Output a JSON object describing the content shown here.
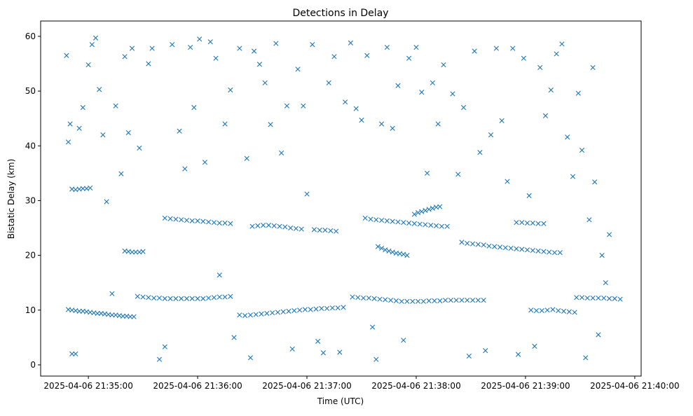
{
  "chart_data": {
    "type": "scatter",
    "title": "Detections in Delay",
    "xlabel": "Time (UTC)",
    "ylabel": "Bistatic Delay (km)",
    "x_units": "seconds after 2025-04-06 21:34:00",
    "xlim": [
      33.8,
      363.5
    ],
    "ylim": [
      -2.05,
      62.8
    ],
    "grid": false,
    "marker": "x",
    "color": "#1f77b4",
    "xticks": [
      {
        "value": 60,
        "label": "2025-04-06 21:35:00"
      },
      {
        "value": 120,
        "label": "2025-04-06 21:36:00"
      },
      {
        "value": 180,
        "label": "2025-04-06 21:37:00"
      },
      {
        "value": 240,
        "label": "2025-04-06 21:38:00"
      },
      {
        "value": 300,
        "label": "2025-04-06 21:39:00"
      },
      {
        "value": 360,
        "label": "2025-04-06 21:40:00"
      }
    ],
    "yticks": [
      {
        "value": 0,
        "label": "0"
      },
      {
        "value": 10,
        "label": "10"
      },
      {
        "value": 20,
        "label": "20"
      },
      {
        "value": 30,
        "label": "30"
      },
      {
        "value": 40,
        "label": "40"
      },
      {
        "value": 50,
        "label": "50"
      },
      {
        "value": 60,
        "label": "60"
      }
    ],
    "points": [
      [
        49,
        10.1
      ],
      [
        51,
        10
      ],
      [
        53,
        9.9
      ],
      [
        55,
        9.8
      ],
      [
        57,
        9.8
      ],
      [
        59,
        9.7
      ],
      [
        61,
        9.6
      ],
      [
        63,
        9.5
      ],
      [
        65,
        9.4
      ],
      [
        67,
        9.4
      ],
      [
        69,
        9.3
      ],
      [
        71,
        9.2
      ],
      [
        73,
        9.1
      ],
      [
        75,
        9.1
      ],
      [
        77,
        9.0
      ],
      [
        79,
        8.9
      ],
      [
        81,
        8.9
      ],
      [
        83,
        8.8
      ],
      [
        85,
        8.8
      ],
      [
        87,
        12.5
      ],
      [
        90,
        12.4
      ],
      [
        93,
        12.3
      ],
      [
        96,
        12.2
      ],
      [
        99,
        12.2
      ],
      [
        102,
        12.1
      ],
      [
        105,
        12.1
      ],
      [
        108,
        12.1
      ],
      [
        111,
        12.1
      ],
      [
        114,
        12.1
      ],
      [
        117,
        12.1
      ],
      [
        120,
        12.1
      ],
      [
        123,
        12.1
      ],
      [
        126,
        12.2
      ],
      [
        129,
        12.3
      ],
      [
        132,
        12.4
      ],
      [
        135,
        12.4
      ],
      [
        138,
        12.5
      ],
      [
        143,
        9.1
      ],
      [
        146,
        9.0
      ],
      [
        149,
        9.1
      ],
      [
        152,
        9.2
      ],
      [
        155,
        9.3
      ],
      [
        158,
        9.4
      ],
      [
        161,
        9.5
      ],
      [
        164,
        9.6
      ],
      [
        167,
        9.7
      ],
      [
        170,
        9.8
      ],
      [
        173,
        9.9
      ],
      [
        176,
        10.0
      ],
      [
        179,
        10.1
      ],
      [
        182,
        10.1
      ],
      [
        185,
        10.2
      ],
      [
        188,
        10.3
      ],
      [
        191,
        10.3
      ],
      [
        194,
        10.4
      ],
      [
        197,
        10.4
      ],
      [
        200,
        10.5
      ],
      [
        205,
        12.4
      ],
      [
        208,
        12.3
      ],
      [
        211,
        12.2
      ],
      [
        214,
        12.2
      ],
      [
        217,
        12.1
      ],
      [
        220,
        12.0
      ],
      [
        223,
        11.9
      ],
      [
        226,
        11.8
      ],
      [
        229,
        11.7
      ],
      [
        232,
        11.6
      ],
      [
        235,
        11.6
      ],
      [
        238,
        11.6
      ],
      [
        241,
        11.6
      ],
      [
        244,
        11.6
      ],
      [
        247,
        11.7
      ],
      [
        250,
        11.7
      ],
      [
        253,
        11.7
      ],
      [
        256,
        11.8
      ],
      [
        259,
        11.8
      ],
      [
        262,
        11.8
      ],
      [
        265,
        11.8
      ],
      [
        268,
        11.8
      ],
      [
        271,
        11.8
      ],
      [
        274,
        11.8
      ],
      [
        277,
        11.8
      ],
      [
        102,
        26.8
      ],
      [
        105,
        26.7
      ],
      [
        108,
        26.6
      ],
      [
        111,
        26.5
      ],
      [
        114,
        26.4
      ],
      [
        117,
        26.3
      ],
      [
        120,
        26.3
      ],
      [
        123,
        26.2
      ],
      [
        126,
        26.1
      ],
      [
        129,
        26.0
      ],
      [
        132,
        25.9
      ],
      [
        135,
        25.9
      ],
      [
        138,
        25.8
      ],
      [
        212,
        26.8
      ],
      [
        215,
        26.6
      ],
      [
        218,
        26.5
      ],
      [
        221,
        26.4
      ],
      [
        224,
        26.3
      ],
      [
        227,
        26.2
      ],
      [
        230,
        26.1
      ],
      [
        233,
        26.0
      ],
      [
        236,
        25.9
      ],
      [
        239,
        25.8
      ],
      [
        242,
        25.7
      ],
      [
        245,
        25.6
      ],
      [
        248,
        25.5
      ],
      [
        251,
        25.4
      ],
      [
        254,
        25.3
      ],
      [
        257,
        25.3
      ],
      [
        265,
        22.4
      ],
      [
        268,
        22.2
      ],
      [
        271,
        22.1
      ],
      [
        274,
        22.0
      ],
      [
        277,
        21.9
      ],
      [
        280,
        21.7
      ],
      [
        283,
        21.6
      ],
      [
        286,
        21.5
      ],
      [
        289,
        21.4
      ],
      [
        292,
        21.3
      ],
      [
        295,
        21.2
      ],
      [
        298,
        21.1
      ],
      [
        301,
        21.0
      ],
      [
        304,
        20.9
      ],
      [
        307,
        20.8
      ],
      [
        310,
        20.7
      ],
      [
        313,
        20.6
      ],
      [
        316,
        20.5
      ],
      [
        319,
        20.5
      ],
      [
        295,
        26.0
      ],
      [
        298,
        26.0
      ],
      [
        301,
        25.9
      ],
      [
        304,
        25.9
      ],
      [
        307,
        25.8
      ],
      [
        310,
        25.8
      ],
      [
        328,
        12.3
      ],
      [
        331,
        12.3
      ],
      [
        334,
        12.2
      ],
      [
        337,
        12.2
      ],
      [
        340,
        12.2
      ],
      [
        343,
        12.2
      ],
      [
        346,
        12.1
      ],
      [
        349,
        12.1
      ],
      [
        352,
        12.0
      ],
      [
        51,
        32.1
      ],
      [
        53,
        32.0
      ],
      [
        55,
        32.1
      ],
      [
        57,
        32.2
      ],
      [
        59,
        32.2
      ],
      [
        61,
        32.3
      ],
      [
        80,
        20.8
      ],
      [
        82,
        20.7
      ],
      [
        84,
        20.6
      ],
      [
        86,
        20.6
      ],
      [
        88,
        20.6
      ],
      [
        90,
        20.7
      ],
      [
        219,
        21.6
      ],
      [
        221,
        21.3
      ],
      [
        223,
        21.0
      ],
      [
        225,
        20.8
      ],
      [
        227,
        20.6
      ],
      [
        229,
        20.4
      ],
      [
        231,
        20.3
      ],
      [
        233,
        20.2
      ],
      [
        235,
        20.0
      ],
      [
        239,
        27.5
      ],
      [
        241,
        27.8
      ],
      [
        243,
        28.0
      ],
      [
        245,
        28.2
      ],
      [
        247,
        28.4
      ],
      [
        249,
        28.6
      ],
      [
        251,
        28.8
      ],
      [
        253,
        28.9
      ],
      [
        303,
        10.0
      ],
      [
        306,
        9.9
      ],
      [
        309,
        9.9
      ],
      [
        312,
        10.0
      ],
      [
        315,
        10.1
      ],
      [
        318,
        9.9
      ],
      [
        321,
        9.8
      ],
      [
        324,
        9.7
      ],
      [
        327,
        9.6
      ],
      [
        150,
        25.3
      ],
      [
        153,
        25.4
      ],
      [
        156,
        25.5
      ],
      [
        159,
        25.5
      ],
      [
        162,
        25.4
      ],
      [
        165,
        25.3
      ],
      [
        168,
        25.2
      ],
      [
        171,
        25.0
      ],
      [
        174,
        24.9
      ],
      [
        177,
        24.8
      ],
      [
        184,
        24.7
      ],
      [
        187,
        24.6
      ],
      [
        190,
        24.6
      ],
      [
        193,
        24.5
      ],
      [
        196,
        24.4
      ],
      [
        48,
        56.5
      ],
      [
        49,
        40.7
      ],
      [
        50,
        44.0
      ],
      [
        51,
        2.0
      ],
      [
        53,
        2.0
      ],
      [
        55,
        43.2
      ],
      [
        57,
        47.0
      ],
      [
        60,
        54.8
      ],
      [
        62,
        58.5
      ],
      [
        64,
        59.7
      ],
      [
        66,
        50.3
      ],
      [
        68,
        42.0
      ],
      [
        70,
        29.8
      ],
      [
        73,
        13.0
      ],
      [
        75,
        47.3
      ],
      [
        78,
        34.9
      ],
      [
        80,
        56.3
      ],
      [
        82,
        42.4
      ],
      [
        84,
        57.8
      ],
      [
        88,
        39.6
      ],
      [
        93,
        55.0
      ],
      [
        95,
        57.8
      ],
      [
        99,
        1.0
      ],
      [
        102,
        3.3
      ],
      [
        106,
        58.5
      ],
      [
        110,
        42.7
      ],
      [
        113,
        35.8
      ],
      [
        116,
        58.0
      ],
      [
        118,
        47.0
      ],
      [
        121,
        59.5
      ],
      [
        124,
        37.0
      ],
      [
        127,
        59.0
      ],
      [
        130,
        56.0
      ],
      [
        132,
        16.4
      ],
      [
        135,
        44.0
      ],
      [
        138,
        50.2
      ],
      [
        140,
        5.0
      ],
      [
        143,
        57.8
      ],
      [
        147,
        37.7
      ],
      [
        149,
        1.3
      ],
      [
        151,
        57.3
      ],
      [
        154,
        54.9
      ],
      [
        157,
        51.5
      ],
      [
        160,
        43.9
      ],
      [
        163,
        58.7
      ],
      [
        166,
        38.7
      ],
      [
        169,
        47.3
      ],
      [
        172,
        2.9
      ],
      [
        175,
        54.0
      ],
      [
        178,
        47.3
      ],
      [
        180,
        31.2
      ],
      [
        183,
        58.5
      ],
      [
        186,
        4.3
      ],
      [
        189,
        2.2
      ],
      [
        192,
        51.5
      ],
      [
        195,
        56.3
      ],
      [
        198,
        2.3
      ],
      [
        201,
        48.0
      ],
      [
        204,
        58.8
      ],
      [
        207,
        46.8
      ],
      [
        210,
        44.7
      ],
      [
        213,
        56.5
      ],
      [
        216,
        6.9
      ],
      [
        218,
        1.0
      ],
      [
        221,
        44.0
      ],
      [
        224,
        58.0
      ],
      [
        227,
        43.2
      ],
      [
        230,
        51.0
      ],
      [
        233,
        4.5
      ],
      [
        236,
        56.0
      ],
      [
        240,
        58.0
      ],
      [
        243,
        49.8
      ],
      [
        246,
        35.0
      ],
      [
        249,
        51.5
      ],
      [
        252,
        44.0
      ],
      [
        255,
        54.8
      ],
      [
        260,
        49.5
      ],
      [
        263,
        34.8
      ],
      [
        266,
        47.0
      ],
      [
        269,
        1.6
      ],
      [
        272,
        57.3
      ],
      [
        275,
        38.8
      ],
      [
        278,
        2.6
      ],
      [
        281,
        42.0
      ],
      [
        284,
        57.8
      ],
      [
        287,
        44.6
      ],
      [
        290,
        33.5
      ],
      [
        293,
        57.8
      ],
      [
        296,
        1.9
      ],
      [
        299,
        56.0
      ],
      [
        302,
        30.9
      ],
      [
        305,
        3.4
      ],
      [
        308,
        54.3
      ],
      [
        311,
        45.5
      ],
      [
        314,
        50.2
      ],
      [
        317,
        56.8
      ],
      [
        320,
        58.6
      ],
      [
        323,
        41.6
      ],
      [
        326,
        34.4
      ],
      [
        329,
        49.6
      ],
      [
        331,
        39.2
      ],
      [
        333,
        1.3
      ],
      [
        335,
        26.5
      ],
      [
        337,
        54.3
      ],
      [
        338,
        33.4
      ],
      [
        340,
        5.5
      ],
      [
        342,
        20.0
      ],
      [
        344,
        15.0
      ],
      [
        346,
        23.8
      ]
    ]
  }
}
